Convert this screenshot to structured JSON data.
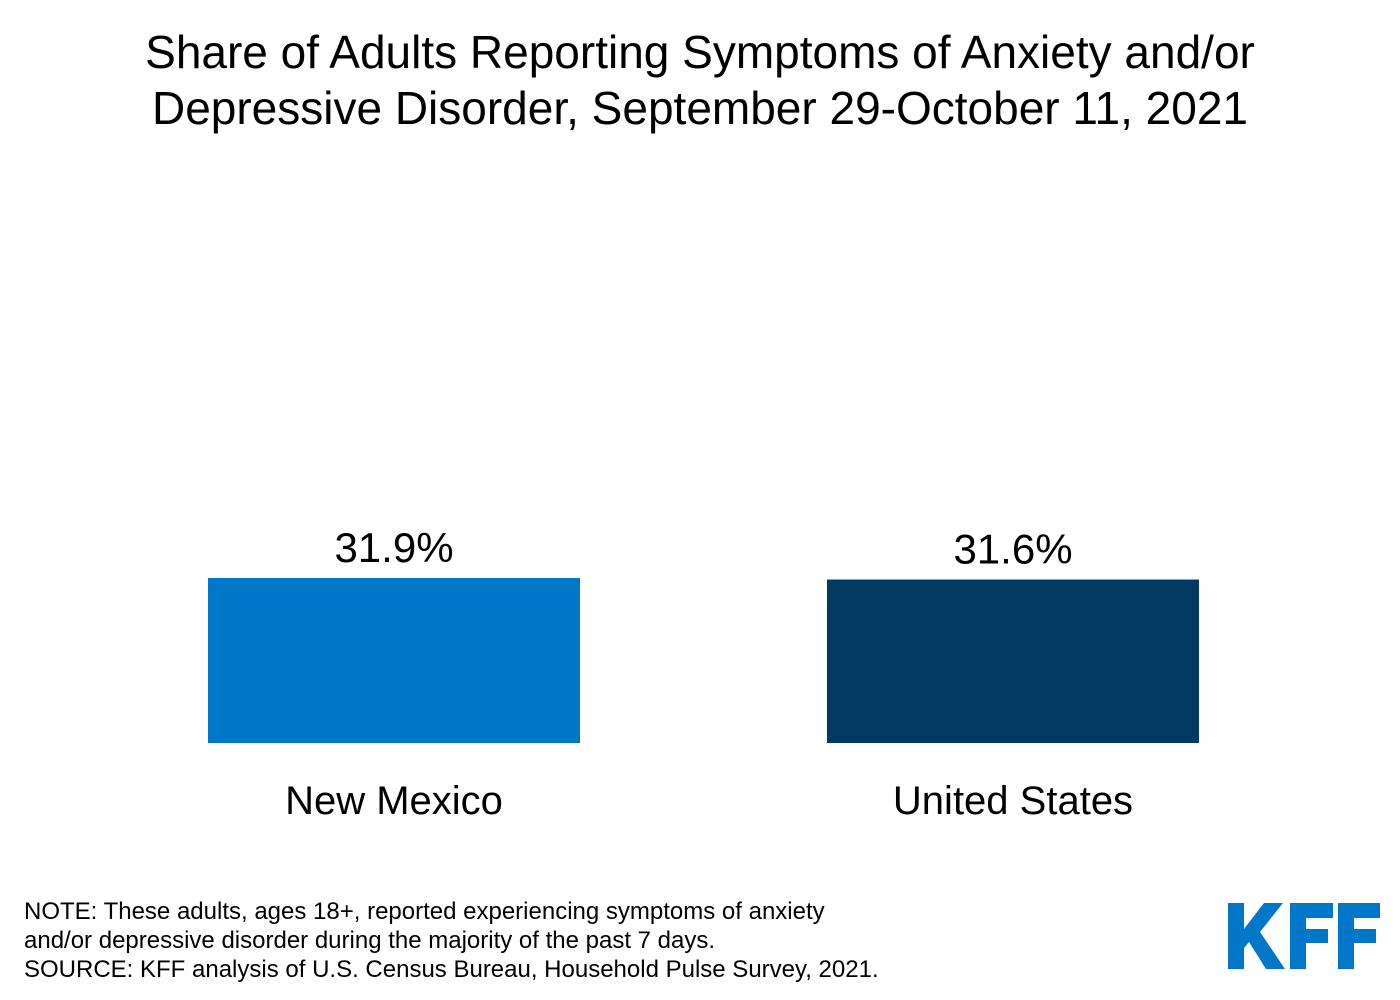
{
  "chart_data": {
    "type": "bar",
    "title": "Share of Adults Reporting Symptoms of Anxiety and/or Depressive Disorder, September 29-October 11, 2021",
    "title_lines": [
      "Share of Adults Reporting Symptoms of Anxiety and/or",
      "Depressive Disorder, September 29-October 11, 2021"
    ],
    "categories": [
      "New Mexico",
      "United States"
    ],
    "values": [
      31.9,
      31.6
    ],
    "value_labels": [
      "31.9%",
      "31.6%"
    ],
    "colors": [
      "#0077c8",
      "#003a63"
    ],
    "xlabel": "",
    "ylabel": "",
    "ylim": [
      0,
      100
    ],
    "grid": false,
    "legend": "none"
  },
  "footnote": {
    "note_line1": "NOTE: These adults, ages 18+, reported experiencing symptoms of anxiety",
    "note_line2": "and/or depressive disorder during the majority of the past 7 days.",
    "source": "SOURCE: KFF analysis of U.S. Census Bureau, Household Pulse Survey, 2021."
  },
  "logo": {
    "text": "KFF",
    "color": "#0077c8"
  }
}
